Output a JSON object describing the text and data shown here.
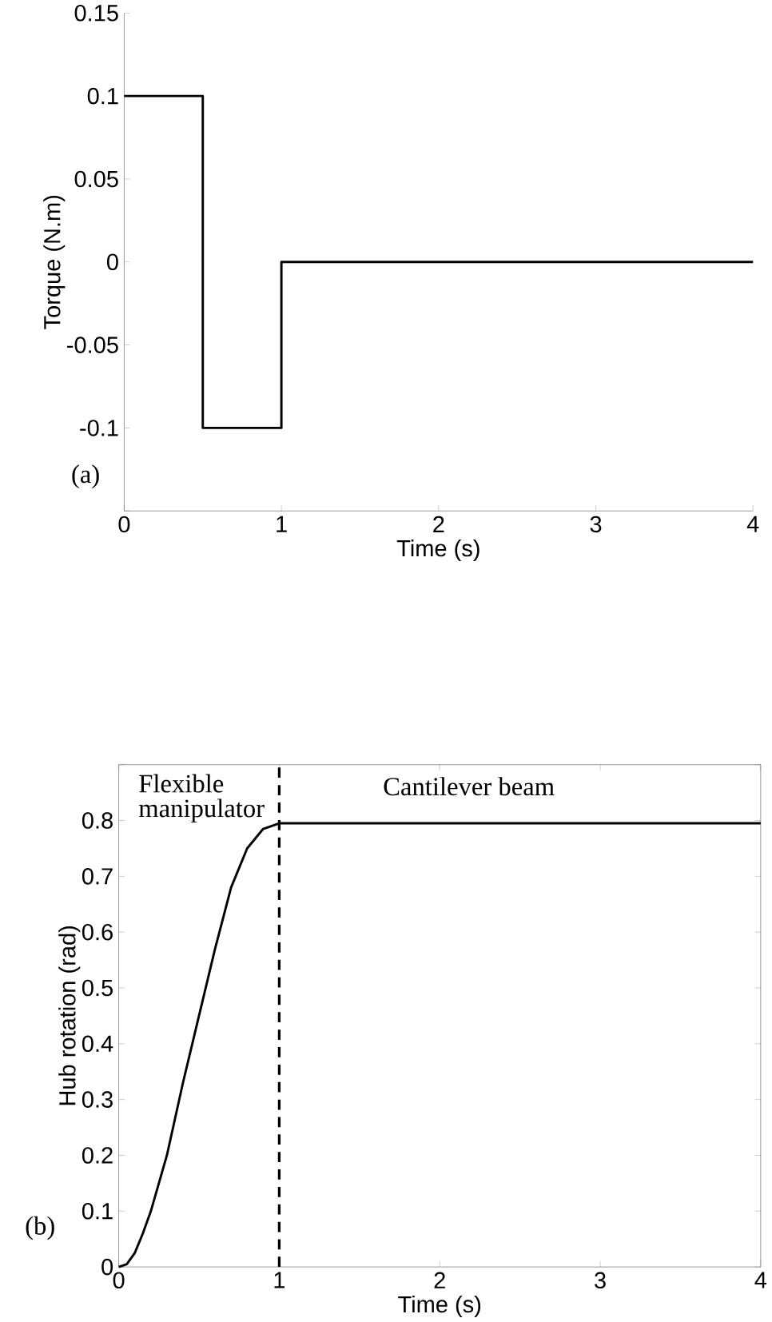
{
  "chart_data": [
    {
      "type": "step",
      "xlabel": "Time (s)",
      "ylabel": "Torque (N.m)",
      "x": [
        0,
        0.5,
        1,
        4
      ],
      "series": [
        {
          "color": "#000000",
          "values": [
            0.1,
            -0.1,
            0,
            0
          ]
        }
      ],
      "xlim": [
        0,
        4
      ],
      "ylim": [
        -0.15,
        0.15
      ],
      "xticks": [
        0,
        1,
        2,
        3,
        4
      ],
      "yticks": [
        {
          "value": -0.15,
          "label": null
        },
        -0.1,
        -0.05,
        0,
        0.05,
        0.1,
        0.15
      ],
      "annotations": [
        "(a)"
      ]
    },
    {
      "type": "line",
      "xlabel": "Time (s)",
      "ylabel": "Hub rotation (rad)",
      "x": [
        0,
        0.05,
        0.1,
        0.15,
        0.2,
        0.25,
        0.3,
        0.4,
        0.5,
        0.6,
        0.7,
        0.8,
        0.9,
        1,
        4
      ],
      "series": [
        {
          "color": "#000000",
          "values": [
            0,
            0.005,
            0.025,
            0.06,
            0.1,
            0.15,
            0.2,
            0.33,
            0.45,
            0.57,
            0.68,
            0.75,
            0.785,
            0.795,
            0.795
          ]
        }
      ],
      "xlim": [
        0,
        4
      ],
      "ylim": [
        0,
        0.9
      ],
      "xticks": [
        0,
        1,
        2,
        3,
        4
      ],
      "yticks": [
        0,
        0.1,
        0.2,
        0.3,
        0.4,
        0.5,
        0.6,
        0.7,
        0.8,
        {
          "value": 0.9,
          "label": null
        }
      ],
      "ref_lines": [
        {
          "axis": "x",
          "value": 1,
          "color": "#000000",
          "line_style": "dashed"
        }
      ],
      "annotations": [
        "Flexible manipulator",
        "Cantilever beam",
        "(b)"
      ]
    }
  ]
}
